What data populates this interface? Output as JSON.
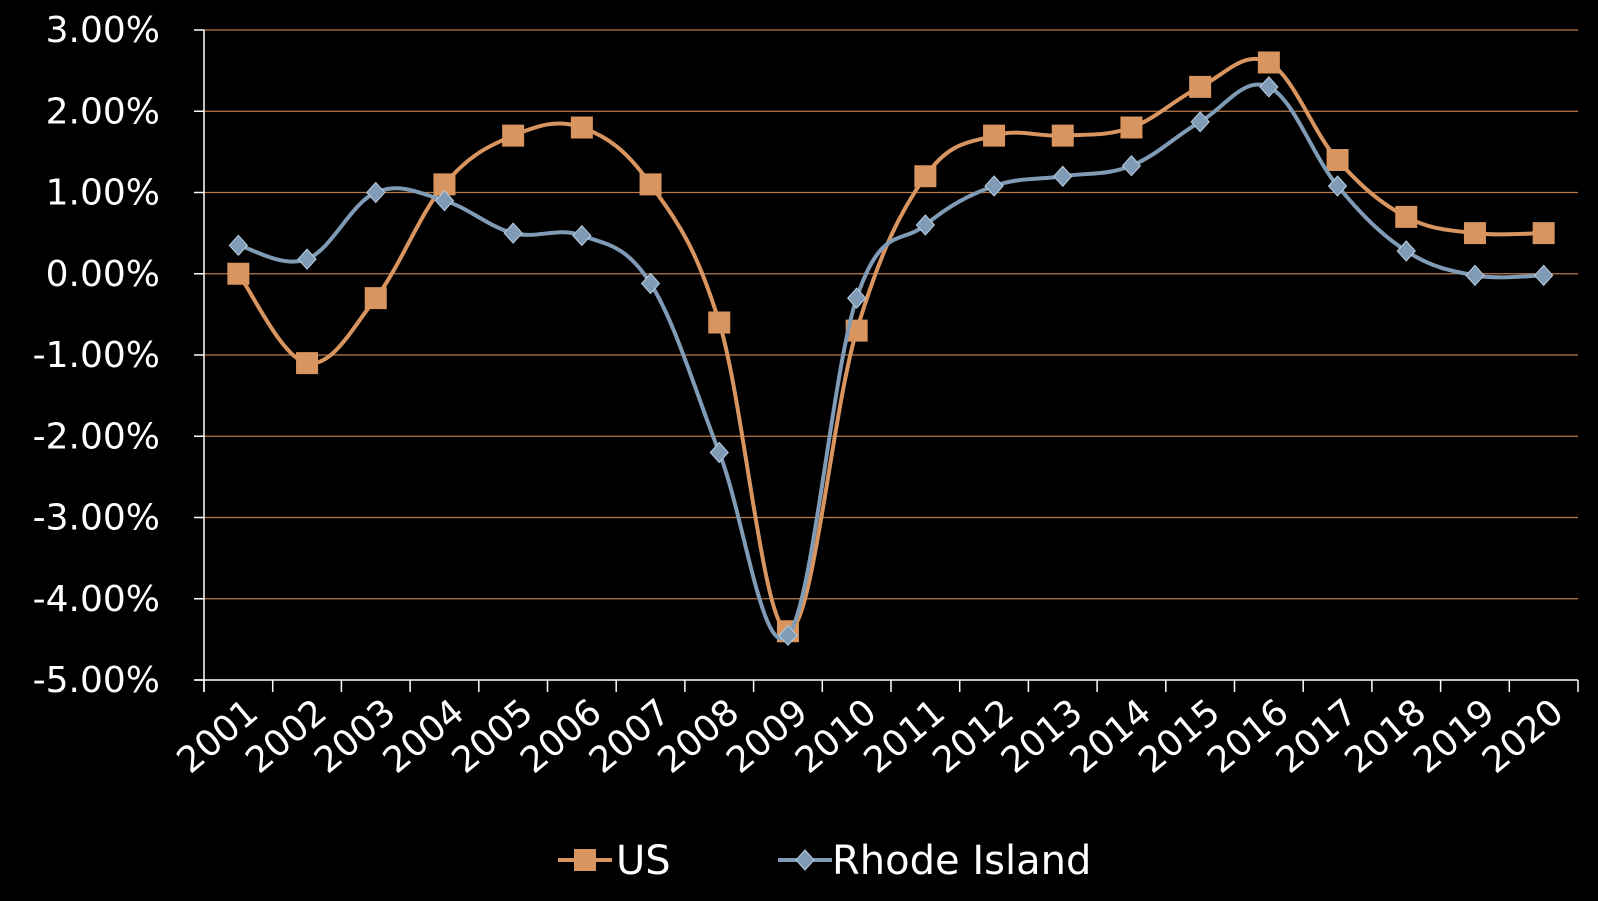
{
  "chart_data": {
    "type": "line",
    "categories": [
      "2001",
      "2002",
      "2003",
      "2004",
      "2005",
      "2006",
      "2007",
      "2008",
      "2009",
      "2010",
      "2011",
      "2012",
      "2013",
      "2014",
      "2015",
      "2016",
      "2017",
      "2018",
      "2019",
      "2020"
    ],
    "series": [
      {
        "name": "US",
        "color": "#d9955f",
        "marker": "square",
        "values": [
          0.0,
          -1.1,
          -0.3,
          1.1,
          1.7,
          1.8,
          1.1,
          -0.6,
          -4.4,
          -0.7,
          1.2,
          1.7,
          1.7,
          1.8,
          2.3,
          2.6,
          1.4,
          0.7,
          0.5,
          0.5
        ]
      },
      {
        "name": "Rhode Island",
        "color": "#7f9bb5",
        "marker": "diamond",
        "values": [
          0.35,
          0.18,
          1.0,
          0.9,
          0.5,
          0.47,
          -0.12,
          -2.2,
          -4.45,
          -0.3,
          0.6,
          1.08,
          1.2,
          1.33,
          1.87,
          2.3,
          1.08,
          0.28,
          -0.02,
          -0.02
        ]
      }
    ],
    "yticks": [
      "3.00%",
      "2.00%",
      "1.00%",
      "0.00%",
      "-1.00%",
      "-2.00%",
      "-3.00%",
      "-4.00%",
      "-5.00%"
    ],
    "ylim": [
      -5,
      3
    ],
    "title": "",
    "xlabel": "",
    "ylabel": "",
    "grid": true,
    "grid_color": "#b87a4b",
    "axis_color": "#ffffff",
    "legend_position": "bottom"
  }
}
